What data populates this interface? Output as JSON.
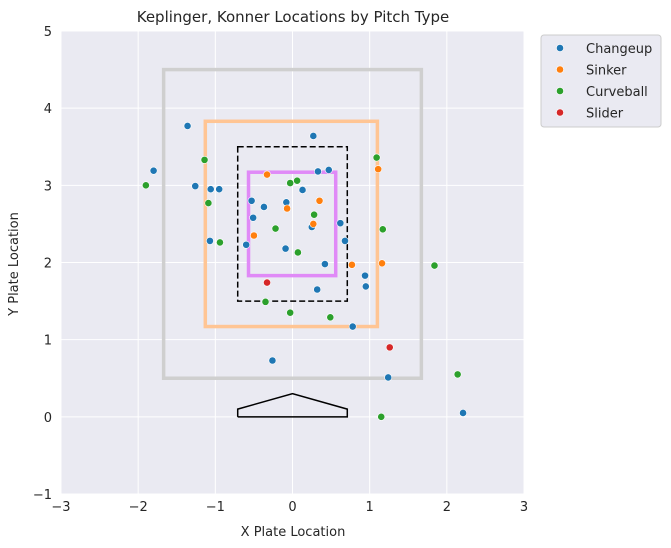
{
  "chart_data": {
    "type": "scatter",
    "title": "Keplinger, Konner Locations by Pitch Type",
    "xlabel": "X Plate Location",
    "ylabel": "Y Plate Location",
    "xlim": [
      -3,
      3
    ],
    "ylim": [
      -1,
      5
    ],
    "xticks": [
      "−3",
      "−2",
      "−1",
      "0",
      "1",
      "2",
      "3"
    ],
    "yticks": [
      "−1",
      "0",
      "1",
      "2",
      "3",
      "4",
      "5"
    ],
    "grid": true,
    "legend_position": "outside-top-right",
    "colors": {
      "background": "#eaeaf2",
      "grid": "#ffffff",
      "Changeup": "#1f77b4",
      "Sinker": "#ff7f0e",
      "Curveball": "#2ca02c",
      "Slider": "#d62728",
      "outer_zone": "#cfcfcf",
      "middle_zone": "#ffc594",
      "strike_zone": "#000000",
      "inner_zone": "#e08af7",
      "home_plate": "#000000"
    },
    "zones": [
      {
        "name": "outer-zone",
        "x": [
          -1.67,
          1.67
        ],
        "y": [
          0.5,
          4.5
        ],
        "style": "solid",
        "color": "outer_zone"
      },
      {
        "name": "middle-zone",
        "x": [
          -1.13,
          1.1
        ],
        "y": [
          1.17,
          3.83
        ],
        "style": "solid",
        "color": "middle_zone"
      },
      {
        "name": "strike-zone",
        "x": [
          -0.71,
          0.71
        ],
        "y": [
          1.5,
          3.5
        ],
        "style": "dashed",
        "color": "strike_zone"
      },
      {
        "name": "inner-zone",
        "x": [
          -0.57,
          0.56
        ],
        "y": [
          1.83,
          3.17
        ],
        "style": "solid",
        "color": "inner_zone"
      }
    ],
    "home_plate": [
      [
        -0.71,
        0.0
      ],
      [
        -0.71,
        0.1
      ],
      [
        0.0,
        0.3
      ],
      [
        0.71,
        0.1
      ],
      [
        0.71,
        0.0
      ],
      [
        -0.71,
        0.0
      ]
    ],
    "series": [
      {
        "name": "Changeup",
        "points": [
          [
            -1.36,
            3.77
          ],
          [
            -1.8,
            3.19
          ],
          [
            -1.26,
            2.99
          ],
          [
            -1.06,
            2.95
          ],
          [
            -0.95,
            2.95
          ],
          [
            0.27,
            3.64
          ],
          [
            0.33,
            3.18
          ],
          [
            0.47,
            3.2
          ],
          [
            0.13,
            2.94
          ],
          [
            -0.53,
            2.8
          ],
          [
            -0.37,
            2.72
          ],
          [
            -0.08,
            2.78
          ],
          [
            -0.51,
            2.58
          ],
          [
            0.25,
            2.46
          ],
          [
            0.62,
            2.51
          ],
          [
            0.68,
            2.28
          ],
          [
            -1.07,
            2.28
          ],
          [
            -0.6,
            2.23
          ],
          [
            -0.09,
            2.18
          ],
          [
            0.42,
            1.98
          ],
          [
            0.94,
            1.83
          ],
          [
            0.95,
            1.69
          ],
          [
            0.32,
            1.65
          ],
          [
            0.78,
            1.17
          ],
          [
            -0.26,
            0.73
          ],
          [
            1.24,
            0.51
          ],
          [
            2.21,
            0.05
          ]
        ]
      },
      {
        "name": "Sinker",
        "points": [
          [
            -0.33,
            3.14
          ],
          [
            1.11,
            3.21
          ],
          [
            -0.07,
            2.7
          ],
          [
            0.35,
            2.8
          ],
          [
            0.27,
            2.5
          ],
          [
            -0.5,
            2.35
          ],
          [
            0.77,
            1.97
          ],
          [
            1.16,
            1.99
          ]
        ]
      },
      {
        "name": "Curveball",
        "points": [
          [
            -1.14,
            3.33
          ],
          [
            1.09,
            3.36
          ],
          [
            -1.9,
            3.0
          ],
          [
            -0.03,
            3.03
          ],
          [
            0.06,
            3.06
          ],
          [
            -1.09,
            2.77
          ],
          [
            0.28,
            2.62
          ],
          [
            -0.22,
            2.44
          ],
          [
            1.17,
            2.43
          ],
          [
            -0.94,
            2.26
          ],
          [
            0.07,
            2.13
          ],
          [
            1.84,
            1.96
          ],
          [
            -0.35,
            1.49
          ],
          [
            -0.03,
            1.35
          ],
          [
            0.49,
            1.29
          ],
          [
            2.14,
            0.55
          ],
          [
            1.15,
            0.0
          ]
        ]
      },
      {
        "name": "Slider",
        "points": [
          [
            -0.33,
            1.74
          ],
          [
            1.26,
            0.9
          ]
        ]
      }
    ]
  }
}
